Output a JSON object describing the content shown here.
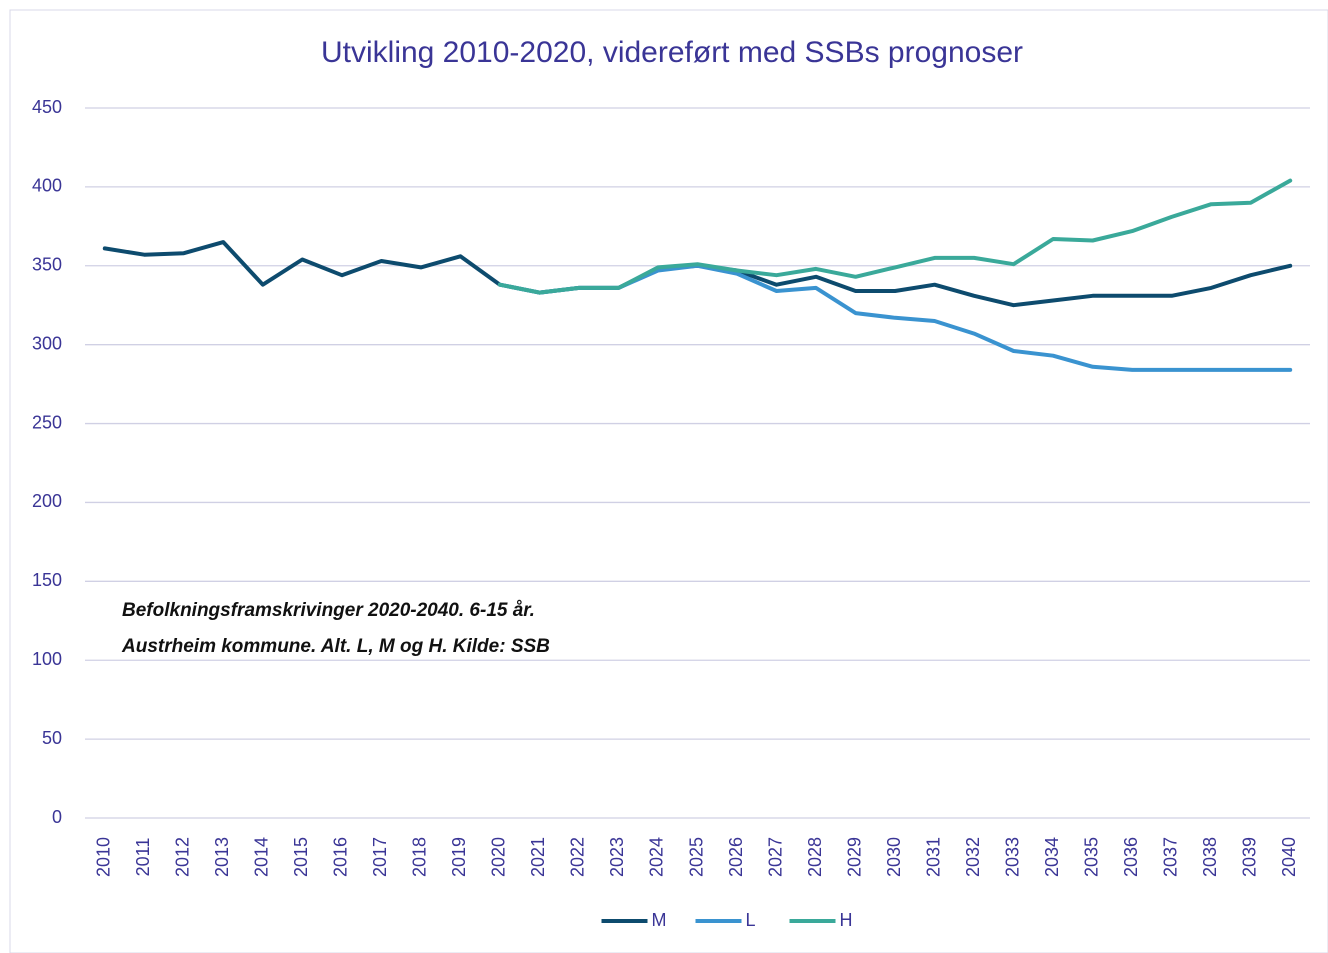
{
  "chart_data": {
    "type": "line",
    "title": "Utvikling 2010-2020, videreført med SSBs prognoser",
    "annotation": [
      "Befolkningsframskrivinger 2020-2040. 6-15 år.",
      "Austrheim kommune. Alt. L, M og H. Kilde: SSB"
    ],
    "categories": [
      "2010",
      "2011",
      "2012",
      "2013",
      "2014",
      "2015",
      "2016",
      "2017",
      "2018",
      "2019",
      "2020",
      "2021",
      "2022",
      "2023",
      "2024",
      "2025",
      "2026",
      "2027",
      "2028",
      "2029",
      "2030",
      "2031",
      "2032",
      "2033",
      "2034",
      "2035",
      "2036",
      "2037",
      "2038",
      "2039",
      "2040"
    ],
    "series": [
      {
        "name": "M",
        "color": "#0d4b6e",
        "values": [
          361,
          357,
          358,
          365,
          338,
          354,
          344,
          353,
          349,
          356,
          338,
          333,
          336,
          336,
          348,
          350,
          347,
          338,
          343,
          334,
          334,
          338,
          331,
          325,
          328,
          331,
          331,
          331,
          336,
          344,
          350
        ]
      },
      {
        "name": "L",
        "color": "#3a93d0",
        "values": [
          null,
          null,
          null,
          null,
          null,
          null,
          null,
          null,
          null,
          null,
          338,
          333,
          336,
          336,
          347,
          350,
          345,
          334,
          336,
          320,
          317,
          315,
          307,
          296,
          293,
          286,
          284,
          284,
          284,
          284,
          284
        ]
      },
      {
        "name": "H",
        "color": "#3aa99a",
        "values": [
          null,
          null,
          null,
          null,
          null,
          null,
          null,
          null,
          null,
          null,
          338,
          333,
          336,
          336,
          349,
          351,
          347,
          344,
          348,
          343,
          349,
          355,
          355,
          351,
          367,
          366,
          372,
          381,
          389,
          390,
          404
        ]
      }
    ],
    "ylim": [
      0,
      450
    ],
    "yticks": [
      0,
      50,
      100,
      150,
      200,
      250,
      300,
      350,
      400,
      450
    ],
    "grid": true,
    "legend": "bottom"
  }
}
